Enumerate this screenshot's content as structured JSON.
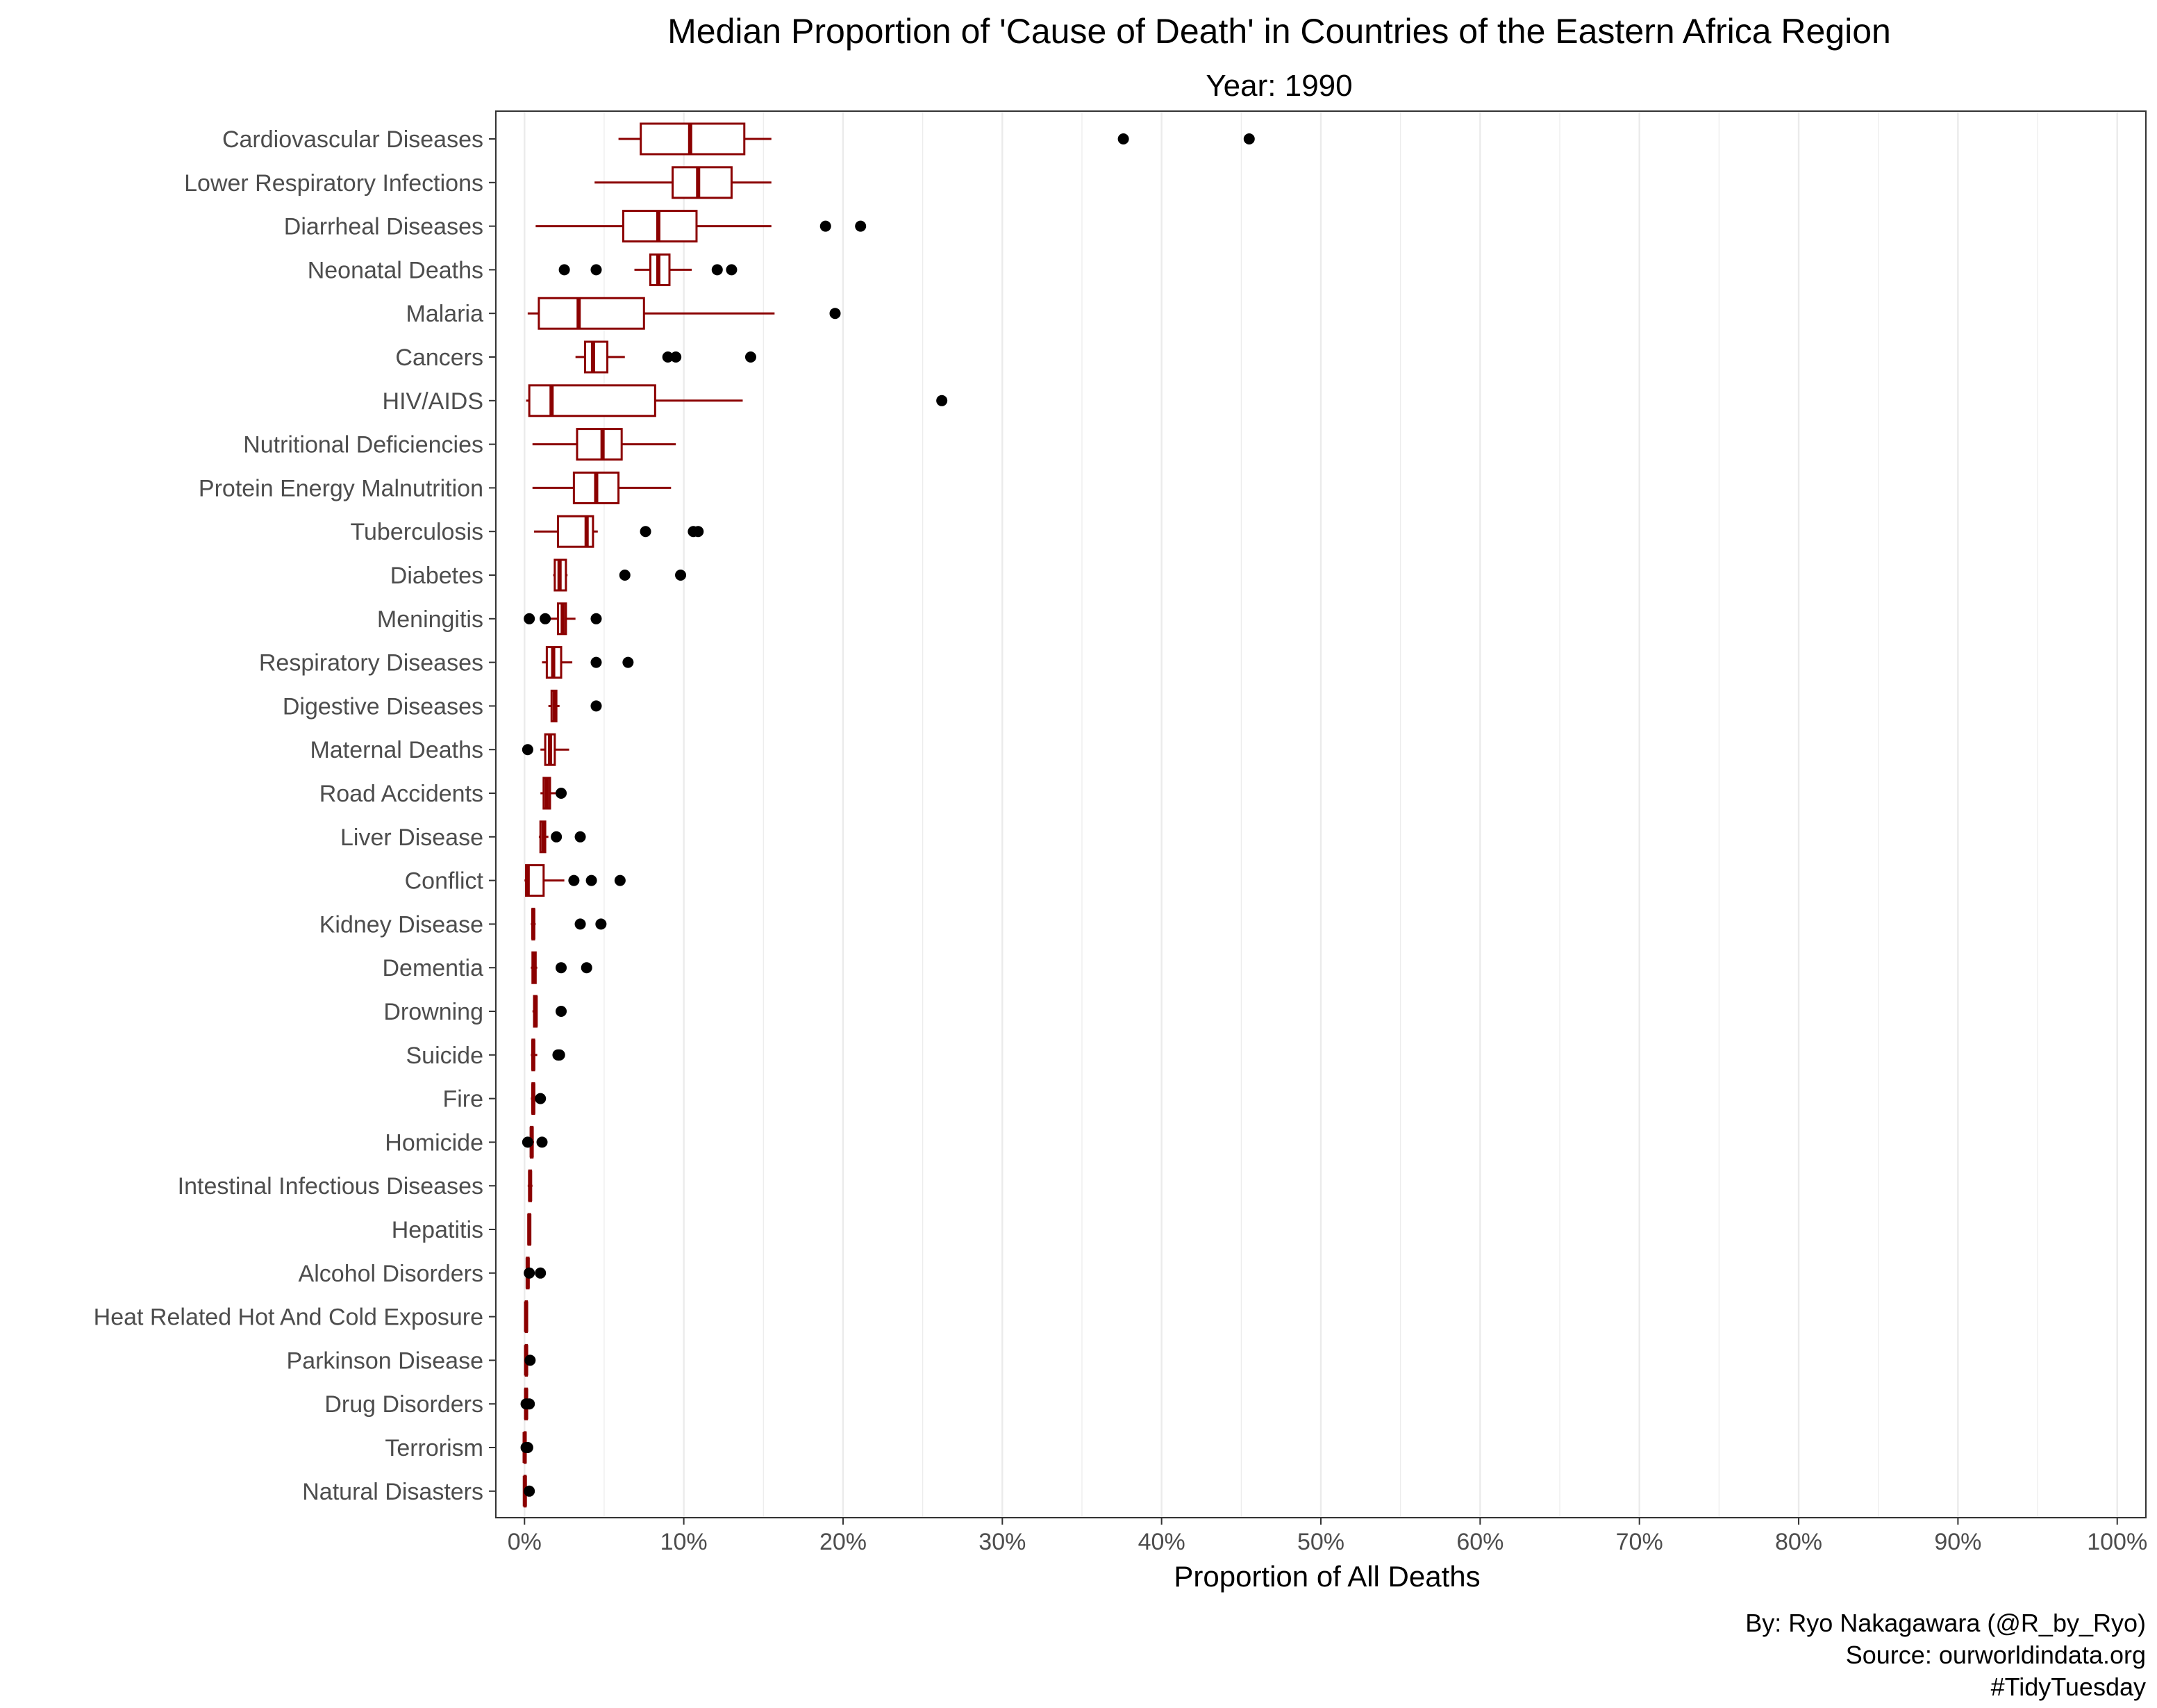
{
  "chart_data": {
    "type": "boxplot",
    "title": "Median Proportion of 'Cause of Death' in Countries of the Eastern Africa Region",
    "subtitle": "Year: 1990",
    "xlabel": "Proportion of All Deaths",
    "ylabel": "",
    "xlim": [
      -1.8,
      101.8
    ],
    "x_ticks": [
      0,
      10,
      20,
      30,
      40,
      50,
      60,
      70,
      80,
      90,
      100
    ],
    "x_tick_labels": [
      "0%",
      "10%",
      "20%",
      "30%",
      "40%",
      "50%",
      "60%",
      "70%",
      "80%",
      "90%",
      "100%"
    ],
    "grid": "vertical",
    "colors": {
      "box": "#8b0000",
      "outlier": "#000000",
      "grid": "#ebebeb",
      "panel_border": "#333333"
    },
    "categories": [
      {
        "name": "Cardiovascular Diseases",
        "whisker_low": 5.9,
        "q1": 7.3,
        "median": 10.4,
        "q3": 13.8,
        "whisker_high": 15.5,
        "outliers": [
          37.6,
          45.5
        ]
      },
      {
        "name": "Lower Respiratory Infections",
        "whisker_low": 4.4,
        "q1": 9.3,
        "median": 10.9,
        "q3": 13.0,
        "whisker_high": 15.5,
        "outliers": []
      },
      {
        "name": "Diarrheal Diseases",
        "whisker_low": 0.7,
        "q1": 6.2,
        "median": 8.4,
        "q3": 10.8,
        "whisker_high": 15.5,
        "outliers": [
          18.9,
          21.1
        ]
      },
      {
        "name": "Neonatal Deaths",
        "whisker_low": 6.9,
        "q1": 7.9,
        "median": 8.4,
        "q3": 9.1,
        "whisker_high": 10.5,
        "outliers": [
          2.5,
          4.5,
          12.1,
          13.0
        ]
      },
      {
        "name": "Malaria",
        "whisker_low": 0.2,
        "q1": 0.9,
        "median": 3.4,
        "q3": 7.5,
        "whisker_high": 15.7,
        "outliers": [
          19.5
        ]
      },
      {
        "name": "Cancers",
        "whisker_low": 3.2,
        "q1": 3.8,
        "median": 4.3,
        "q3": 5.2,
        "whisker_high": 6.3,
        "outliers": [
          9.0,
          9.5,
          14.2
        ]
      },
      {
        "name": "HIV/AIDS",
        "whisker_low": 0.1,
        "q1": 0.3,
        "median": 1.7,
        "q3": 8.2,
        "whisker_high": 13.7,
        "outliers": [
          26.2
        ]
      },
      {
        "name": "Nutritional Deficiencies",
        "whisker_low": 0.5,
        "q1": 3.3,
        "median": 4.9,
        "q3": 6.1,
        "whisker_high": 9.5,
        "outliers": []
      },
      {
        "name": "Protein Energy Malnutrition",
        "whisker_low": 0.5,
        "q1": 3.1,
        "median": 4.5,
        "q3": 5.9,
        "whisker_high": 9.2,
        "outliers": []
      },
      {
        "name": "Tuberculosis",
        "whisker_low": 0.6,
        "q1": 2.1,
        "median": 3.9,
        "q3": 4.3,
        "whisker_high": 4.6,
        "outliers": [
          7.6,
          10.6,
          10.9
        ]
      },
      {
        "name": "Diabetes",
        "whisker_low": 1.8,
        "q1": 1.9,
        "median": 2.2,
        "q3": 2.6,
        "whisker_high": 2.7,
        "outliers": [
          6.3,
          9.8
        ]
      },
      {
        "name": "Meningitis",
        "whisker_low": 1.4,
        "q1": 2.1,
        "median": 2.4,
        "q3": 2.6,
        "whisker_high": 3.2,
        "outliers": [
          0.3,
          1.3,
          4.5
        ]
      },
      {
        "name": "Respiratory Diseases",
        "whisker_low": 1.1,
        "q1": 1.4,
        "median": 1.8,
        "q3": 2.3,
        "whisker_high": 3.0,
        "outliers": [
          4.5,
          6.5
        ]
      },
      {
        "name": "Digestive Diseases",
        "whisker_low": 1.5,
        "q1": 1.7,
        "median": 1.9,
        "q3": 2.0,
        "whisker_high": 2.2,
        "outliers": [
          4.5
        ]
      },
      {
        "name": "Maternal Deaths",
        "whisker_low": 1.0,
        "q1": 1.3,
        "median": 1.6,
        "q3": 1.9,
        "whisker_high": 2.8,
        "outliers": [
          0.2
        ]
      },
      {
        "name": "Road Accidents",
        "whisker_low": 1.0,
        "q1": 1.2,
        "median": 1.4,
        "q3": 1.6,
        "whisker_high": 2.0,
        "outliers": [
          2.3
        ]
      },
      {
        "name": "Liver Disease",
        "whisker_low": 0.9,
        "q1": 1.0,
        "median": 1.2,
        "q3": 1.3,
        "whisker_high": 1.5,
        "outliers": [
          2.0,
          3.5
        ]
      },
      {
        "name": "Conflict",
        "whisker_low": 0.0,
        "q1": 0.1,
        "median": 0.2,
        "q3": 1.2,
        "whisker_high": 2.5,
        "outliers": [
          3.1,
          4.2,
          6.0
        ]
      },
      {
        "name": "Kidney Disease",
        "whisker_low": 0.4,
        "q1": 0.5,
        "median": 0.55,
        "q3": 0.6,
        "whisker_high": 0.7,
        "outliers": [
          3.5,
          4.8
        ]
      },
      {
        "name": "Dementia",
        "whisker_low": 0.4,
        "q1": 0.5,
        "median": 0.6,
        "q3": 0.7,
        "whisker_high": 0.8,
        "outliers": [
          2.3,
          3.9
        ]
      },
      {
        "name": "Drowning",
        "whisker_low": 0.5,
        "q1": 0.6,
        "median": 0.7,
        "q3": 0.75,
        "whisker_high": 0.8,
        "outliers": [
          2.3
        ]
      },
      {
        "name": "Suicide",
        "whisker_low": 0.4,
        "q1": 0.5,
        "median": 0.55,
        "q3": 0.6,
        "whisker_high": 0.8,
        "outliers": [
          2.1,
          2.2
        ]
      },
      {
        "name": "Fire",
        "whisker_low": 0.4,
        "q1": 0.5,
        "median": 0.55,
        "q3": 0.6,
        "whisker_high": 0.7,
        "outliers": [
          1.0
        ]
      },
      {
        "name": "Homicide",
        "whisker_low": 0.3,
        "q1": 0.4,
        "median": 0.45,
        "q3": 0.5,
        "whisker_high": 0.6,
        "outliers": [
          0.2,
          1.1
        ]
      },
      {
        "name": "Intestinal Infectious Diseases",
        "whisker_low": 0.2,
        "q1": 0.3,
        "median": 0.35,
        "q3": 0.4,
        "whisker_high": 0.5,
        "outliers": []
      },
      {
        "name": "Hepatitis",
        "whisker_low": 0.2,
        "q1": 0.25,
        "median": 0.3,
        "q3": 0.35,
        "whisker_high": 0.4,
        "outliers": []
      },
      {
        "name": "Alcohol Disorders",
        "whisker_low": 0.1,
        "q1": 0.15,
        "median": 0.2,
        "q3": 0.25,
        "whisker_high": 0.3,
        "outliers": [
          0.3,
          1.0
        ]
      },
      {
        "name": "Heat Related Hot And Cold Exposure",
        "whisker_low": 0.05,
        "q1": 0.08,
        "median": 0.1,
        "q3": 0.12,
        "whisker_high": 0.15,
        "outliers": []
      },
      {
        "name": "Parkinson Disease",
        "whisker_low": 0.05,
        "q1": 0.08,
        "median": 0.1,
        "q3": 0.12,
        "whisker_high": 0.15,
        "outliers": [
          0.35
        ]
      },
      {
        "name": "Drug Disorders",
        "whisker_low": 0.0,
        "q1": 0.05,
        "median": 0.1,
        "q3": 0.15,
        "whisker_high": 0.2,
        "outliers": [
          0.1,
          0.3
        ]
      },
      {
        "name": "Terrorism",
        "whisker_low": 0.0,
        "q1": 0.0,
        "median": 0.01,
        "q3": 0.02,
        "whisker_high": 0.05,
        "outliers": [
          0.1,
          0.2
        ]
      },
      {
        "name": "Natural Disasters",
        "whisker_low": 0.0,
        "q1": 0.0,
        "median": 0.02,
        "q3": 0.05,
        "whisker_high": 0.1,
        "outliers": [
          0.3
        ]
      }
    ]
  },
  "caption": {
    "line1": "By: Ryo Nakagawara (@R_by_Ryo)",
    "line2": "Source: ourworldindata.org",
    "line3": "#TidyTuesday"
  }
}
